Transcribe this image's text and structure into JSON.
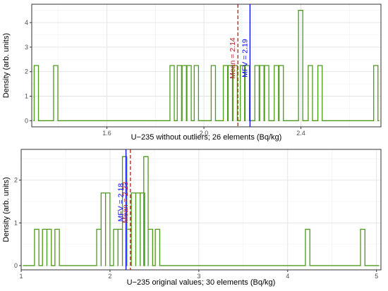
{
  "chart_data": [
    {
      "type": "histogram",
      "xlabel": "U−235 without outliers; 26 elements (Bq/kg)",
      "ylabel": "Density (arb. units)",
      "xlim": [
        1.29,
        2.73
      ],
      "ylim": [
        -0.25,
        4.75
      ],
      "xticks": [
        1.6,
        2.0,
        2.4
      ],
      "xtick_labels": [
        "1.6",
        "2.0",
        "2.4"
      ],
      "yticks": [
        0,
        1,
        2,
        3,
        4
      ],
      "yticks_labels": [
        "0",
        "1",
        "2",
        "3",
        "4"
      ],
      "grid": true,
      "color": "#4d9a1a",
      "bin_width": 0.0177,
      "bars": [
        {
          "x0": 1.3,
          "y": 2.25
        },
        {
          "x0": 1.38,
          "y": 2.25
        },
        {
          "x0": 1.86,
          "y": 2.25
        },
        {
          "x0": 1.89,
          "y": 2.25
        },
        {
          "x0": 1.91,
          "y": 2.25
        },
        {
          "x0": 1.93,
          "y": 2.25
        },
        {
          "x0": 1.96,
          "y": 2.25
        },
        {
          "x0": 2.03,
          "y": 2.25
        },
        {
          "x0": 2.08,
          "y": 2.25
        },
        {
          "x0": 2.1,
          "y": 2.25
        },
        {
          "x0": 2.12,
          "y": 2.25
        },
        {
          "x0": 2.15,
          "y": 2.25
        },
        {
          "x0": 2.17,
          "y": 2.25
        },
        {
          "x0": 2.21,
          "y": 2.25
        },
        {
          "x0": 2.23,
          "y": 2.25
        },
        {
          "x0": 2.25,
          "y": 2.25
        },
        {
          "x0": 2.29,
          "y": 2.25
        },
        {
          "x0": 2.31,
          "y": 2.25
        },
        {
          "x0": 2.39,
          "y": 4.5
        },
        {
          "x0": 2.43,
          "y": 2.25
        },
        {
          "x0": 2.47,
          "y": 2.25
        },
        {
          "x0": 2.7,
          "y": 2.25
        }
      ],
      "annotations": [
        {
          "label": "Mean = 2.14",
          "x": 2.14,
          "color": "#b22222",
          "style": "dashed"
        },
        {
          "label": "MFV = 2.19",
          "x": 2.19,
          "color": "#0000ff",
          "style": "solid"
        }
      ]
    },
    {
      "type": "histogram",
      "xlabel": "U−235 original values; 30 elements (Bq/kg)",
      "ylabel": "Density (arb. units)",
      "xlim": [
        1.0,
        5.05
      ],
      "ylim": [
        -0.1,
        2.72
      ],
      "xticks": [
        1,
        2,
        3,
        4,
        5
      ],
      "xtick_labels": [
        "1",
        "2",
        "3",
        "4",
        "5"
      ],
      "yticks": [
        0,
        1,
        2
      ],
      "yticks_labels": [
        "0",
        "1",
        "2"
      ],
      "grid": true,
      "color": "#4d9a1a",
      "bin_width": 0.0497,
      "bars": [
        {
          "x0": 1.15,
          "y": 0.85
        },
        {
          "x0": 1.24,
          "y": 0.85
        },
        {
          "x0": 1.29,
          "y": 0.85
        },
        {
          "x0": 1.38,
          "y": 0.85
        },
        {
          "x0": 1.85,
          "y": 0.85
        },
        {
          "x0": 1.9,
          "y": 1.7
        },
        {
          "x0": 1.95,
          "y": 1.7
        },
        {
          "x0": 2.04,
          "y": 0.85
        },
        {
          "x0": 2.09,
          "y": 0.85
        },
        {
          "x0": 2.14,
          "y": 2.55
        },
        {
          "x0": 2.19,
          "y": 0.85
        },
        {
          "x0": 2.24,
          "y": 1.7
        },
        {
          "x0": 2.29,
          "y": 1.7
        },
        {
          "x0": 2.34,
          "y": 1.7
        },
        {
          "x0": 2.38,
          "y": 2.55
        },
        {
          "x0": 2.43,
          "y": 0.85
        },
        {
          "x0": 2.51,
          "y": 0.85
        },
        {
          "x0": 4.2,
          "y": 0.85
        },
        {
          "x0": 4.82,
          "y": 0.85
        }
      ],
      "annotations": [
        {
          "label": "MFV = 2.18",
          "x": 2.18,
          "color": "#0000ff",
          "style": "solid"
        },
        {
          "label": "Mean = 2.23",
          "x": 2.23,
          "color": "#b22222",
          "style": "dashed"
        }
      ]
    }
  ]
}
